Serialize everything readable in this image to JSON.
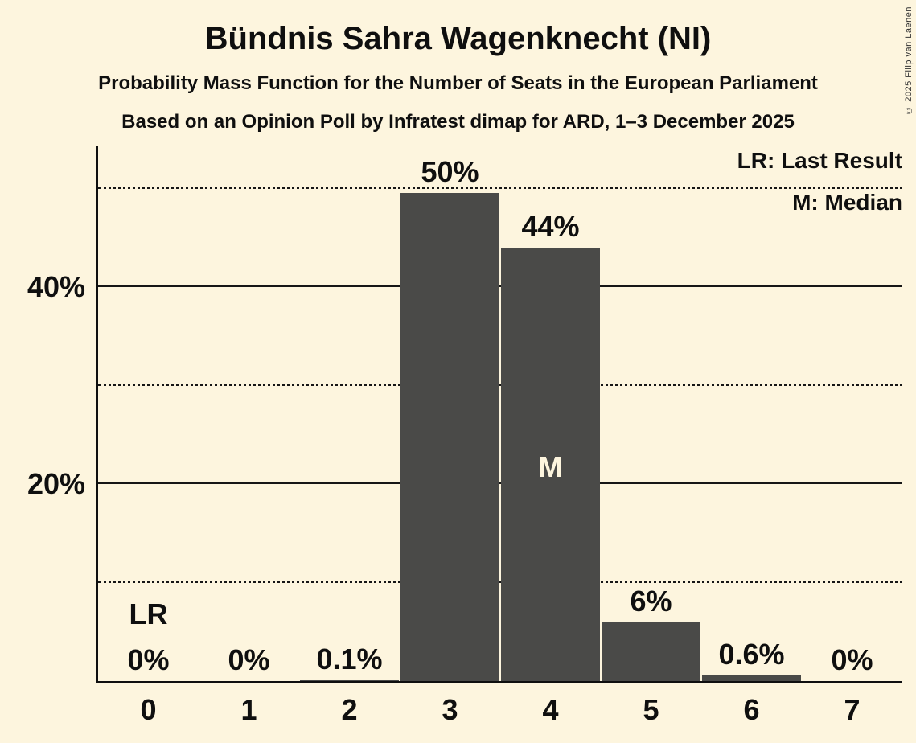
{
  "header": {
    "title": "Bündnis Sahra Wagenknecht (NI)",
    "subtitle": "Probability Mass Function for the Number of Seats in the European Parliament",
    "source_line": "Based on an Opinion Poll by Infratest dimap for ARD, 1–3 December 2025"
  },
  "copyright": "© 2025 Filip van Laenen",
  "legend": {
    "last_result": "LR: Last Result",
    "median": "M: Median"
  },
  "colors": {
    "background": "#FDF5DE",
    "bar": "#4A4A48",
    "text": "#0F0F0F"
  },
  "chart_data": {
    "type": "bar",
    "title": "Bündnis Sahra Wagenknecht (NI)",
    "xlabel": "",
    "ylabel": "",
    "categories": [
      "0",
      "1",
      "2",
      "3",
      "4",
      "5",
      "6",
      "7"
    ],
    "values": [
      0,
      0,
      0.1,
      50,
      44,
      6,
      0.6,
      0
    ],
    "bar_display_values": [
      0,
      0,
      0.1,
      49.6,
      44,
      6,
      0.6,
      0
    ],
    "labels": [
      "0%",
      "0%",
      "0.1%",
      "50%",
      "44%",
      "6%",
      "0.6%",
      "0%"
    ],
    "ylim": [
      0,
      54.3
    ],
    "y_ticks": [
      {
        "value": 20,
        "label": "20%"
      },
      {
        "value": 40,
        "label": "40%"
      }
    ],
    "solid_gridlines": [
      20,
      40
    ],
    "dotted_gridlines": [
      10,
      30,
      50
    ],
    "grid": true,
    "legend_position": "top-right",
    "annotations": [
      {
        "text": "LR",
        "meaning": "Last Result",
        "seat": "0",
        "placement": "above-baseline"
      },
      {
        "text": "M",
        "meaning": "Median",
        "seat": "4",
        "placement": "inside-bar"
      }
    ]
  }
}
